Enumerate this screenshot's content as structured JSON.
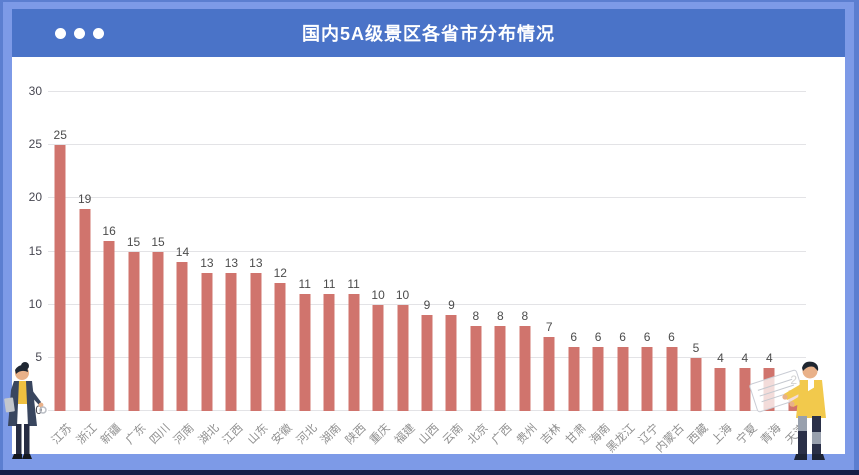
{
  "window": {
    "title": "国内5A级景区各省市分布情况",
    "dots_count": 3
  },
  "colors": {
    "frame_outer": "#5b7ed0",
    "frame_stripe": "#7d9ae7",
    "frame_navy": "#151e45",
    "header_bg": "#4a73c8",
    "bar": "#d0746d",
    "grid": "#e3e3e6",
    "y_tick_text": "#474751",
    "value_text": "#4c4c4c",
    "x_label_text": "#909090"
  },
  "chart_data": {
    "type": "bar",
    "title": "国内5A级景区各省市分布情况",
    "categories": [
      "江苏",
      "浙江",
      "新疆",
      "广东",
      "四川",
      "河南",
      "湖北",
      "江西",
      "山东",
      "安徽",
      "河北",
      "湖南",
      "陕西",
      "重庆",
      "福建",
      "山西",
      "云南",
      "北京",
      "广西",
      "贵州",
      "吉林",
      "甘肃",
      "海南",
      "黑龙江",
      "辽宁",
      "内蒙古",
      "西藏",
      "上海",
      "宁夏",
      "青海",
      "天津"
    ],
    "values": [
      25,
      19,
      16,
      15,
      15,
      14,
      13,
      13,
      13,
      12,
      11,
      11,
      11,
      10,
      10,
      9,
      9,
      8,
      8,
      8,
      7,
      6,
      6,
      6,
      6,
      6,
      5,
      4,
      4,
      4,
      2
    ],
    "xlabel": "",
    "ylabel": "",
    "ylim": [
      0,
      30
    ],
    "yticks": [
      0,
      5,
      10,
      15,
      20,
      25,
      30
    ],
    "grid": true,
    "legend_position": "none",
    "bar_color": "#d0746d",
    "value_labels_shown": true,
    "x_label_rotation_deg": 45
  },
  "decorations": {
    "left_person": "woman-holding-notebook-illustration",
    "right_person": "man-holding-clipboard-illustration",
    "clipboard_overlay": "semi-transparent-clipboard-over-last-bars"
  }
}
